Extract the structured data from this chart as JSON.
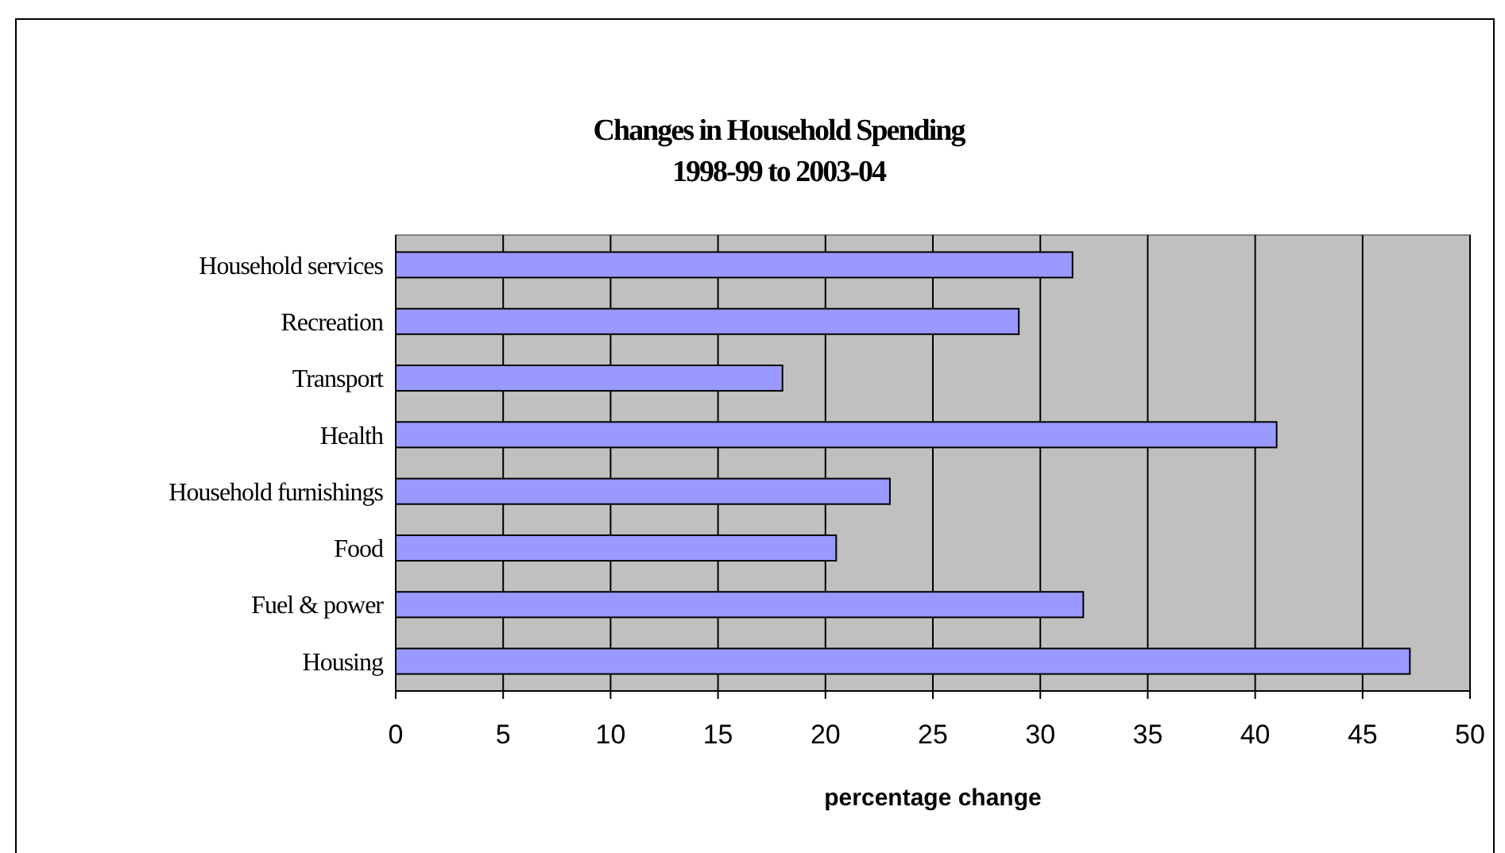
{
  "chart_data": {
    "type": "bar",
    "orientation": "horizontal",
    "title": "Changes in Household Spending\n1998-99 to 2003-04",
    "xlabel": "percentage change",
    "categories": [
      "Household services",
      "Recreation",
      "Transport",
      "Health",
      "Household furnishings",
      "Food",
      "Fuel & power",
      "Housing"
    ],
    "values": [
      31.5,
      29,
      18,
      41,
      23,
      20.5,
      32,
      47.2
    ],
    "color": "#9999ff",
    "xlim": [
      0,
      50
    ],
    "xticks": [
      0,
      5,
      10,
      15,
      20,
      25,
      30,
      35,
      40,
      45,
      50
    ],
    "grid": "x"
  }
}
